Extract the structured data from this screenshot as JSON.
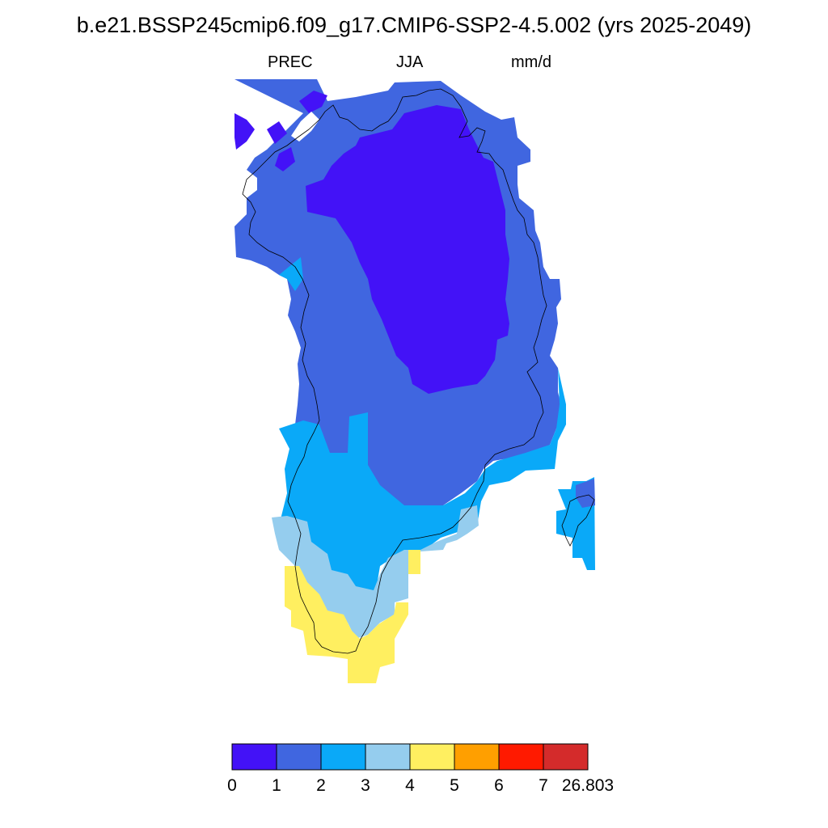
{
  "title": "b.e21.BSSP245cmip6.f09_g17.CMIP6-SSP2-4.5.002 (yrs 2025-2049)",
  "subtitle": {
    "variable": "PREC",
    "season": "JJA",
    "units": "mm/d"
  },
  "colorbar": {
    "bins": [
      {
        "color": "#4312f7",
        "label": "0"
      },
      {
        "color": "#4066e0",
        "label": "1"
      },
      {
        "color": "#0aa9f8",
        "label": "2"
      },
      {
        "color": "#95cdee",
        "label": "3"
      },
      {
        "color": "#ffef60",
        "label": "4"
      },
      {
        "color": "#ff9f00",
        "label": "5"
      },
      {
        "color": "#ff1a00",
        "label": "6"
      },
      {
        "color": "#d42b2b",
        "label": "7"
      }
    ],
    "end_label": "26.803"
  }
}
